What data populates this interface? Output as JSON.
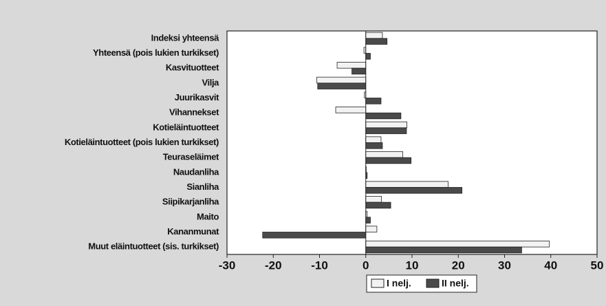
{
  "chart_data": {
    "type": "hbar",
    "categories": [
      "Indeksi yhteensä",
      "Yhteensä (pois lukien turkikset)",
      "Kasvituotteet",
      "Vilja",
      "Juurikasvit",
      "Vihannekset",
      "Kotieläintuotteet",
      "Kotieläintuotteet (pois lukien turkikset)",
      "Teuraseläimet",
      "Naudanliha",
      "Sianliha",
      "Siipikarjanliha",
      "Maito",
      "Kananmunat",
      "Muut eläintuotteet (sis. turkikset)"
    ],
    "series": [
      {
        "name": "I nelj.",
        "color": "#f2f2f2",
        "values": [
          3.6,
          -0.4,
          -6.2,
          -10.6,
          -0.3,
          -6.5,
          8.9,
          3.3,
          8.0,
          0.1,
          17.8,
          3.4,
          0.3,
          2.4,
          39.7
        ]
      },
      {
        "name": "II nelj.",
        "color": "#4a4a4a",
        "values": [
          4.6,
          1.0,
          -3.0,
          -10.4,
          3.3,
          7.6,
          8.8,
          3.6,
          9.8,
          0.3,
          20.8,
          5.4,
          1.0,
          -22.3,
          33.7
        ]
      }
    ],
    "xlim": [
      -30,
      50
    ],
    "xticks": [
      -30,
      -20,
      -10,
      0,
      10,
      20,
      30,
      40,
      50
    ],
    "legend": "bottom"
  }
}
